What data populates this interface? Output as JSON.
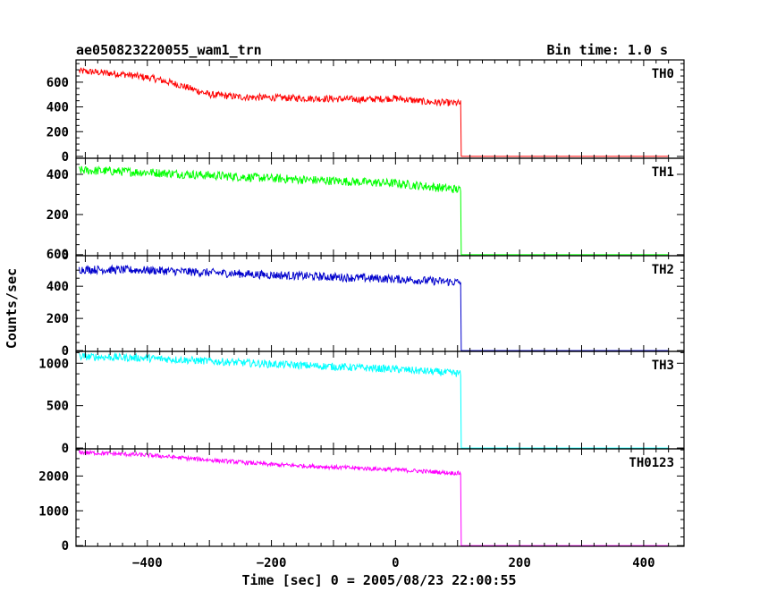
{
  "chart_data": {
    "type": "line",
    "title": "ae050823220055_wam1_trn",
    "subtitle": "Bin time: 1.0 s",
    "xlabel": "Time [sec] 0 = 2005/08/23 22:00:55",
    "ylabel": "Counts/sec",
    "xlim": [
      -515,
      465
    ],
    "xticks": [
      -400,
      -200,
      0,
      200,
      400
    ],
    "xtick_labels": [
      "−400",
      "−200",
      "0",
      "200",
      "400"
    ],
    "series": [
      {
        "name": "TH0",
        "color": "#ff0000",
        "ylim": [
          -15,
          780
        ],
        "yticks": [
          0,
          200,
          400,
          600
        ],
        "points": [
          [
            -510,
            690
          ],
          [
            -440,
            665
          ],
          [
            -390,
            630
          ],
          [
            -350,
            580
          ],
          [
            -300,
            500
          ],
          [
            -250,
            480
          ],
          [
            -150,
            470
          ],
          [
            -50,
            460
          ],
          [
            0,
            470
          ],
          [
            50,
            440
          ],
          [
            100,
            430
          ],
          [
            105,
            430
          ],
          [
            106,
            0
          ],
          [
            440,
            0
          ]
        ],
        "noise": 28
      },
      {
        "name": "TH1",
        "color": "#00ff00",
        "ylim": [
          -5,
          480
        ],
        "yticks": [
          0,
          200,
          400
        ],
        "points": [
          [
            -510,
            420
          ],
          [
            -400,
            410
          ],
          [
            -200,
            380
          ],
          [
            0,
            355
          ],
          [
            100,
            325
          ],
          [
            105,
            320
          ],
          [
            106,
            0
          ],
          [
            440,
            0
          ]
        ],
        "noise": 22
      },
      {
        "name": "TH2",
        "color": "#0000cc",
        "ylim": [
          -5,
          590
        ],
        "yticks": [
          0,
          200,
          400,
          600
        ],
        "points": [
          [
            -510,
            505
          ],
          [
            -400,
            500
          ],
          [
            -200,
            470
          ],
          [
            0,
            445
          ],
          [
            100,
            425
          ],
          [
            105,
            425
          ],
          [
            106,
            0
          ],
          [
            440,
            0
          ]
        ],
        "noise": 26
      },
      {
        "name": "TH3",
        "color": "#00ffff",
        "ylim": [
          -10,
          1140
        ],
        "yticks": [
          0,
          500,
          1000
        ],
        "points": [
          [
            -510,
            1080
          ],
          [
            -400,
            1060
          ],
          [
            -200,
            990
          ],
          [
            0,
            930
          ],
          [
            100,
            880
          ],
          [
            105,
            875
          ],
          [
            106,
            0
          ],
          [
            440,
            0
          ]
        ],
        "noise": 45
      },
      {
        "name": "TH0123",
        "color": "#ff00ff",
        "ylim": [
          -20,
          2780
        ],
        "yticks": [
          0,
          1000,
          2000
        ],
        "points": [
          [
            -510,
            2680
          ],
          [
            -400,
            2600
          ],
          [
            -300,
            2460
          ],
          [
            -200,
            2330
          ],
          [
            0,
            2180
          ],
          [
            100,
            2080
          ],
          [
            105,
            2075
          ],
          [
            106,
            0
          ],
          [
            440,
            0
          ]
        ],
        "noise": 60
      }
    ]
  }
}
